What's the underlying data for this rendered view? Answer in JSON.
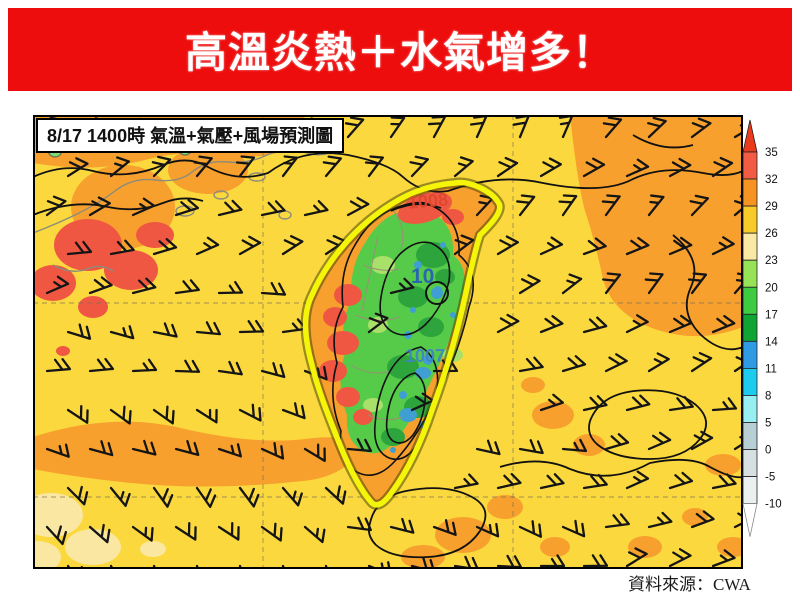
{
  "banner": {
    "text": "高溫炎熱＋水氣增多！"
  },
  "map": {
    "title": "8/17 1400時 氣溫+氣壓+風場預測圖",
    "isobar_label": "1008",
    "contour_label_center": "10",
    "contour_label_south": "1007",
    "source": "資料來源：CWA"
  },
  "colorbar": {
    "ticks": [
      "35",
      "32",
      "29",
      "26",
      "23",
      "20",
      "17",
      "14",
      "11",
      "8",
      "5",
      "0",
      "-5",
      "-10"
    ],
    "segment_colors": [
      "#f25c45",
      "#f79421",
      "#f9cb2a",
      "#fae9a4",
      "#97e357",
      "#3dcb42",
      "#0fa434",
      "#2e9be4",
      "#1ccbee",
      "#97eff2",
      "#b7cfd4",
      "#d6e0e3",
      "#eaefef"
    ],
    "above_color": "#e93a1c",
    "below_color": "#ffffff"
  },
  "colors": {
    "banner_red": "#ee0d0d",
    "sea_yellow": "#fbd93e",
    "warm_orange": "#f7a02e",
    "hot_red": "#ef5742",
    "pale_yellow": "#fae7a2",
    "land_green": "#56cb49",
    "dark_green": "#2da43c",
    "cool_blue": "#3f9fd2",
    "taiwan_outline": "#f5f50a",
    "barb_black": "#151515"
  }
}
